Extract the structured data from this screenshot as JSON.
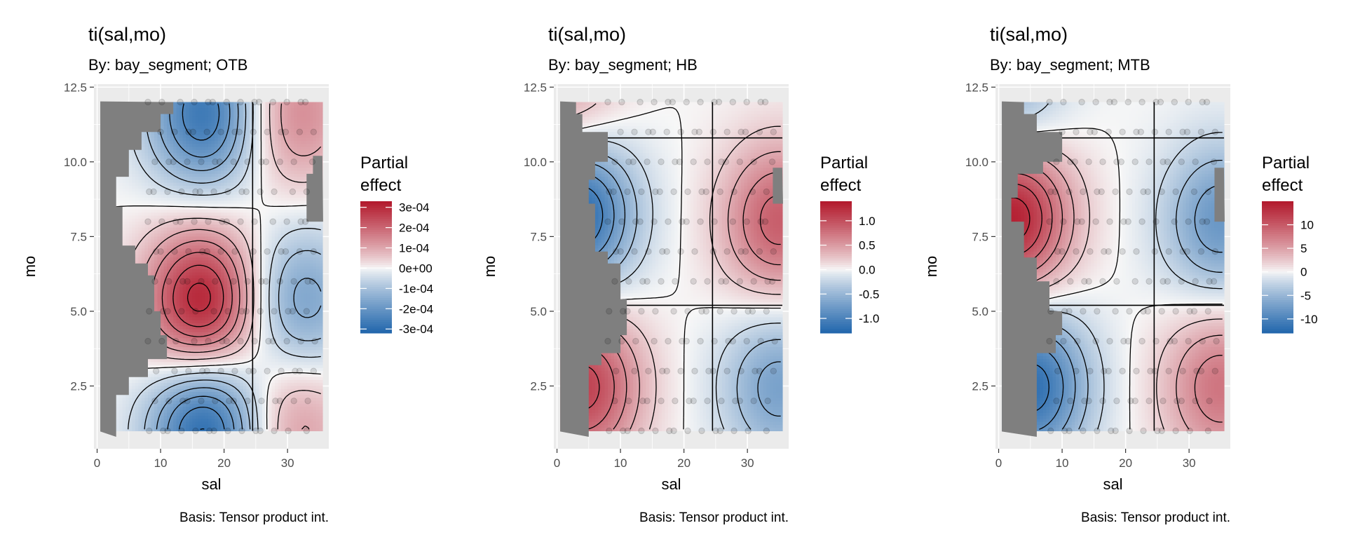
{
  "colors": {
    "panel_bg": "#ebebeb",
    "grid": "#ffffff",
    "mask": "#7f7f7f",
    "scale_low": "#2166ac",
    "scale_mid": "#f7f7f7",
    "scale_high": "#b2182b",
    "contour": "#000000",
    "points": "#000000"
  },
  "chart_data": [
    {
      "type": "heatmap",
      "title": "ti(sal,mo)",
      "subtitle": "By: bay_segment; OTB",
      "caption": "Basis: Tensor product int.",
      "xlabel": "sal",
      "ylabel": "mo",
      "xlim": [
        -0.5,
        36.5
      ],
      "ylim": [
        0.4,
        12.6
      ],
      "x_ticks": [
        "0",
        "10",
        "20",
        "30"
      ],
      "y_ticks": [
        "2.5",
        "5.0",
        "7.5",
        "10.0",
        "12.5"
      ],
      "grid": true,
      "contours": true,
      "legend": {
        "title_line1": "Partial",
        "title_line2": "effect",
        "labels": [
          "3e-04",
          "2e-04",
          "1e-04",
          "0e+00",
          "-1e-04",
          "-2e-04",
          "-3e-04"
        ],
        "values": [
          0.0003,
          0.0002,
          0.0001,
          0,
          -0.0001,
          -0.0002,
          -0.0003
        ],
        "range": [
          -0.00032,
          0.00033
        ]
      },
      "data_region": {
        "x": [
          0.5,
          35.5
        ],
        "y": [
          1,
          12
        ]
      },
      "peaks": [
        {
          "x": 16.5,
          "y": 5.2,
          "value": 0.00033
        },
        {
          "x": 31,
          "y": 11.6,
          "value": 0.00015
        },
        {
          "x": 31,
          "y": 1.4,
          "value": 0.00013
        },
        {
          "x": 17,
          "y": 11.6,
          "value": -0.00028
        },
        {
          "x": 17,
          "y": 1.2,
          "value": -0.00032
        },
        {
          "x": 32,
          "y": 5.2,
          "value": -0.00018
        }
      ],
      "mask_boundary": [
        [
          12,
          12.3
        ],
        [
          12,
          11.6
        ],
        [
          10,
          11.6
        ],
        [
          10,
          11.0
        ],
        [
          7,
          11.0
        ],
        [
          7,
          10.4
        ],
        [
          5,
          10.4
        ],
        [
          5,
          9.5
        ],
        [
          3,
          9.5
        ],
        [
          3,
          8.5
        ],
        [
          4,
          8.5
        ],
        [
          4,
          7.2
        ],
        [
          6,
          7.2
        ],
        [
          6,
          6.6
        ],
        [
          8,
          6.6
        ],
        [
          8,
          6.2
        ],
        [
          9,
          6.2
        ],
        [
          9,
          5.0
        ],
        [
          10,
          5.0
        ],
        [
          10,
          4.2
        ],
        [
          11,
          4.2
        ],
        [
          11,
          3.4
        ],
        [
          8,
          3.4
        ],
        [
          8,
          2.8
        ],
        [
          5,
          2.8
        ],
        [
          5,
          2.2
        ],
        [
          3,
          2.2
        ],
        [
          3,
          0.8
        ]
      ],
      "right_notch": [
        [
          33,
          8.0
        ],
        [
          33,
          9.6
        ],
        [
          34,
          9.6
        ],
        [
          34,
          10.2
        ],
        [
          35.5,
          10.2
        ]
      ]
    },
    {
      "type": "heatmap",
      "title": "ti(sal,mo)",
      "subtitle": "By: bay_segment; HB",
      "caption": "Basis: Tensor product int.",
      "xlabel": "sal",
      "ylabel": "mo",
      "xlim": [
        -0.5,
        36.5
      ],
      "ylim": [
        0.4,
        12.6
      ],
      "x_ticks": [
        "0",
        "10",
        "20",
        "30"
      ],
      "y_ticks": [
        "2.5",
        "5.0",
        "7.5",
        "10.0",
        "12.5"
      ],
      "grid": true,
      "contours": true,
      "legend": {
        "title_line1": "Partial",
        "title_line2": "effect",
        "labels": [
          "1.0",
          "0.5",
          "0.0",
          "-0.5",
          "-1.0"
        ],
        "values": [
          1.0,
          0.5,
          0.0,
          -0.5,
          -1.0
        ],
        "range": [
          -1.3,
          1.4
        ]
      },
      "data_region": {
        "x": [
          0.5,
          35.5
        ],
        "y": [
          1,
          12
        ]
      },
      "peaks": [
        {
          "x": 3,
          "y": 8.3,
          "value": -1.3
        },
        {
          "x": 4,
          "y": 2.5,
          "value": 1.1
        },
        {
          "x": 35,
          "y": 8.0,
          "value": 0.9
        },
        {
          "x": 35,
          "y": 2.5,
          "value": -0.7
        },
        {
          "x": 1,
          "y": 12,
          "value": 0.5
        }
      ],
      "mask_boundary": [
        [
          3,
          12.3
        ],
        [
          3,
          11.6
        ],
        [
          4,
          11.6
        ],
        [
          4,
          11.0
        ],
        [
          8,
          11.0
        ],
        [
          8,
          10.0
        ],
        [
          6,
          10.0
        ],
        [
          6,
          9.4
        ],
        [
          5,
          9.4
        ],
        [
          5,
          8.6
        ],
        [
          6,
          8.6
        ],
        [
          6,
          7.0
        ],
        [
          8,
          7.0
        ],
        [
          8,
          6.6
        ],
        [
          10,
          6.6
        ],
        [
          10,
          5.4
        ],
        [
          11,
          5.4
        ],
        [
          11,
          4.2
        ],
        [
          10,
          4.2
        ],
        [
          10,
          3.6
        ],
        [
          7,
          3.6
        ],
        [
          7,
          3.2
        ],
        [
          5,
          3.2
        ],
        [
          5,
          0.8
        ]
      ],
      "right_notch": [
        [
          34,
          8.6
        ],
        [
          34,
          9.8
        ],
        [
          35.5,
          9.8
        ]
      ]
    },
    {
      "type": "heatmap",
      "title": "ti(sal,mo)",
      "subtitle": "By: bay_segment; MTB",
      "caption": "Basis: Tensor product int.",
      "xlabel": "sal",
      "ylabel": "mo",
      "xlim": [
        -0.5,
        36.5
      ],
      "ylim": [
        0.4,
        12.6
      ],
      "x_ticks": [
        "0",
        "10",
        "20",
        "30"
      ],
      "y_ticks": [
        "2.5",
        "5.0",
        "7.5",
        "10.0",
        "12.5"
      ],
      "grid": true,
      "contours": true,
      "legend": {
        "title_line1": "Partial",
        "title_line2": "effect",
        "labels": [
          "10",
          "5",
          "0",
          "-5",
          "-10"
        ],
        "values": [
          10,
          5,
          0,
          -5,
          -10
        ],
        "range": [
          -13,
          15
        ]
      },
      "data_region": {
        "x": [
          0.5,
          35.5
        ],
        "y": [
          1,
          12
        ]
      },
      "peaks": [
        {
          "x": 2,
          "y": 8.2,
          "value": 15
        },
        {
          "x": 5,
          "y": 2.5,
          "value": -12
        },
        {
          "x": 35,
          "y": 8.0,
          "value": -8
        },
        {
          "x": 35,
          "y": 2.5,
          "value": 8
        },
        {
          "x": 1,
          "y": 12,
          "value": -6
        }
      ],
      "mask_boundary": [
        [
          4,
          12.3
        ],
        [
          4,
          11.6
        ],
        [
          6,
          11.6
        ],
        [
          6,
          11.0
        ],
        [
          10,
          11.0
        ],
        [
          10,
          10.0
        ],
        [
          7,
          10.0
        ],
        [
          7,
          9.6
        ],
        [
          3,
          9.6
        ],
        [
          3,
          8.8
        ],
        [
          2,
          8.8
        ],
        [
          2,
          8.0
        ],
        [
          4,
          8.0
        ],
        [
          4,
          6.8
        ],
        [
          6,
          6.8
        ],
        [
          6,
          6.0
        ],
        [
          8,
          6.0
        ],
        [
          8,
          5.0
        ],
        [
          10,
          5.0
        ],
        [
          10,
          4.2
        ],
        [
          9,
          4.2
        ],
        [
          9,
          3.6
        ],
        [
          6,
          3.6
        ],
        [
          6,
          0.8
        ]
      ],
      "right_notch": [
        [
          34,
          8.0
        ],
        [
          34,
          9.8
        ],
        [
          35.5,
          9.8
        ]
      ]
    }
  ]
}
